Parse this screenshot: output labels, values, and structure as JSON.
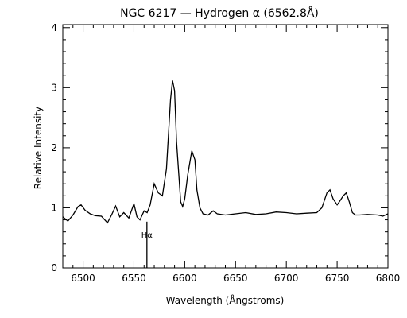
{
  "chart_data": {
    "type": "line",
    "title": "NGC 6217 — Hydrogen α (6562.8Å)",
    "xlabel": "Wavelength (Ångstroms)",
    "ylabel": "Relative Intensity",
    "xlim": [
      6480,
      6800
    ],
    "ylim": [
      0,
      4.05
    ],
    "grid": false,
    "xticks": [
      6500,
      6550,
      6600,
      6650,
      6700,
      6750,
      6800
    ],
    "yticks": [
      0,
      1,
      2,
      3,
      4
    ],
    "series": [
      {
        "color": "#000000",
        "x": [
          6480,
          6485,
          6490,
          6495,
          6498,
          6502,
          6507,
          6512,
          6518,
          6524,
          6528,
          6532,
          6536,
          6540,
          6545,
          6550,
          6553,
          6556,
          6560,
          6563,
          6566,
          6570,
          6574,
          6578,
          6582,
          6586,
          6588,
          6590,
          6592,
          6596,
          6598,
          6600,
          6603,
          6607,
          6610,
          6612,
          6615,
          6618,
          6623,
          6628,
          6632,
          6640,
          6650,
          6660,
          6670,
          6680,
          6690,
          6700,
          6710,
          6720,
          6730,
          6735,
          6740,
          6743,
          6746,
          6750,
          6753,
          6756,
          6759,
          6762,
          6765,
          6768,
          6772,
          6780,
          6790,
          6795,
          6800
        ],
        "y": [
          0.85,
          0.78,
          0.88,
          1.02,
          1.05,
          0.96,
          0.9,
          0.87,
          0.86,
          0.75,
          0.88,
          1.03,
          0.85,
          0.92,
          0.83,
          1.07,
          0.85,
          0.8,
          0.95,
          0.92,
          1.05,
          1.4,
          1.25,
          1.2,
          1.65,
          2.8,
          3.12,
          2.95,
          2.1,
          1.1,
          1.02,
          1.15,
          1.55,
          1.95,
          1.8,
          1.3,
          1.0,
          0.9,
          0.88,
          0.95,
          0.9,
          0.88,
          0.9,
          0.92,
          0.89,
          0.9,
          0.93,
          0.92,
          0.9,
          0.91,
          0.92,
          1.0,
          1.25,
          1.3,
          1.15,
          1.05,
          1.12,
          1.2,
          1.25,
          1.1,
          0.92,
          0.88,
          0.88,
          0.89,
          0.88,
          0.86,
          0.9
        ]
      }
    ],
    "annotations": [
      {
        "label": "Hα",
        "x": 6562.8,
        "y_from": 0,
        "y_to": 0.77
      }
    ]
  }
}
